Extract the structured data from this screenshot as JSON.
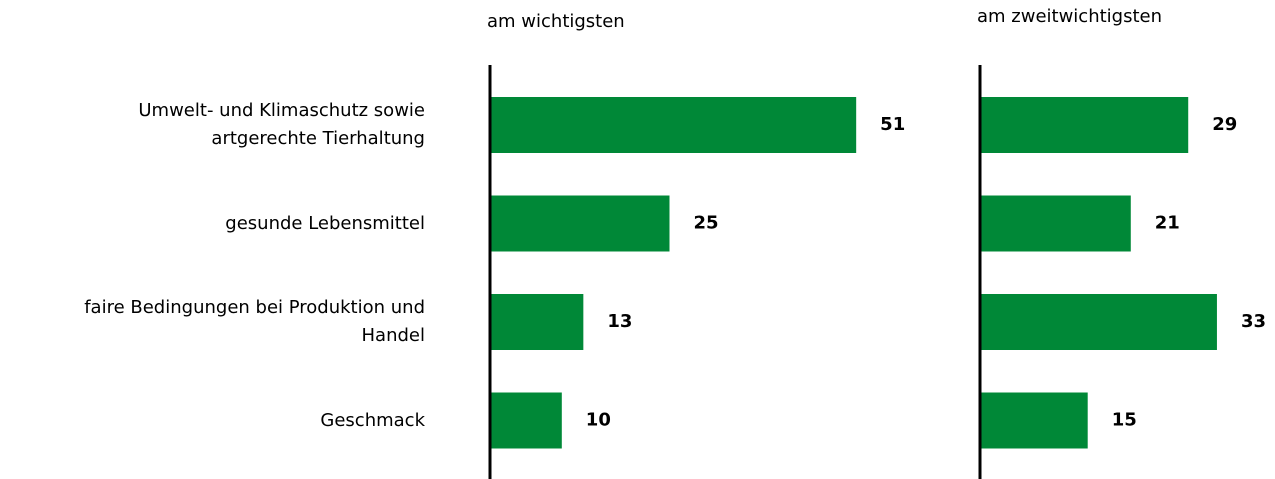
{
  "chart_data": {
    "type": "bar",
    "orientation": "horizontal",
    "categories": [
      "Umwelt- und Klimaschutz sowie\nartgerechte Tierhaltung",
      "gesunde Lebensmittel",
      "faire Bedingungen bei Produktion und\nHandel",
      "Geschmack"
    ],
    "series": [
      {
        "name": "am wichtigsten",
        "color": "#008837",
        "values": [
          51,
          25,
          13,
          10
        ]
      },
      {
        "name": "am zweitwichtigsten",
        "color": "#008837",
        "values": [
          29,
          21,
          33,
          15
        ]
      }
    ]
  }
}
